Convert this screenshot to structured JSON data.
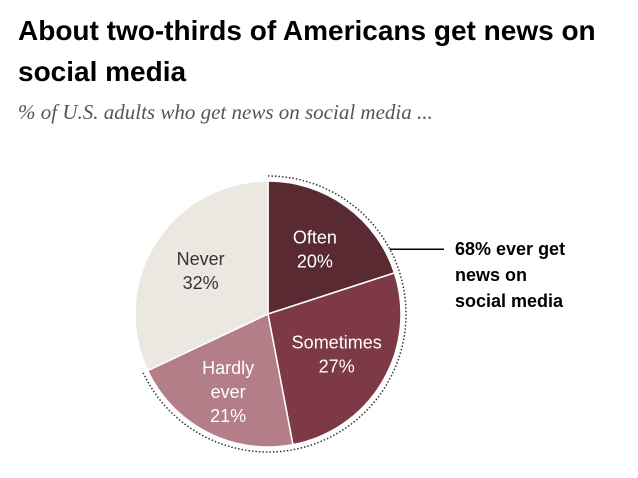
{
  "title": "About two-thirds of Americans get news on social media",
  "subtitle": "% of U.S. adults who get news on social media ...",
  "colors": {
    "often": "#5a2a33",
    "sometimes": "#7d3a46",
    "hardly_ever": "#b47e89",
    "never": "#ebe8e2",
    "bracket": "#333333"
  },
  "chart_data": {
    "type": "pie",
    "title": "About two-thirds of Americans get news on social media",
    "subtitle": "% of U.S. adults who get news on social media ...",
    "slices": [
      {
        "name": "Often",
        "value": 20,
        "label_lines": [
          "Often",
          "20%"
        ],
        "color": "#5a2a33",
        "text_color": "#ffffff"
      },
      {
        "name": "Sometimes",
        "value": 27,
        "label_lines": [
          "Sometimes",
          "27%"
        ],
        "color": "#7d3a46",
        "text_color": "#ffffff"
      },
      {
        "name": "Hardly ever",
        "value": 21,
        "label_lines": [
          "Hardly",
          "ever",
          "21%"
        ],
        "color": "#b47e89",
        "text_color": "#ffffff"
      },
      {
        "name": "Never",
        "value": 32,
        "label_lines": [
          "Never",
          "32%"
        ],
        "color": "#ebe8e2",
        "text_color": "#333333"
      }
    ],
    "start_angle_deg": 0,
    "direction": "clockwise",
    "annotation": {
      "text_lines": [
        "68% ever get",
        "news on",
        "social media"
      ],
      "spans": [
        "Often",
        "Sometimes",
        "Hardly ever"
      ]
    }
  }
}
